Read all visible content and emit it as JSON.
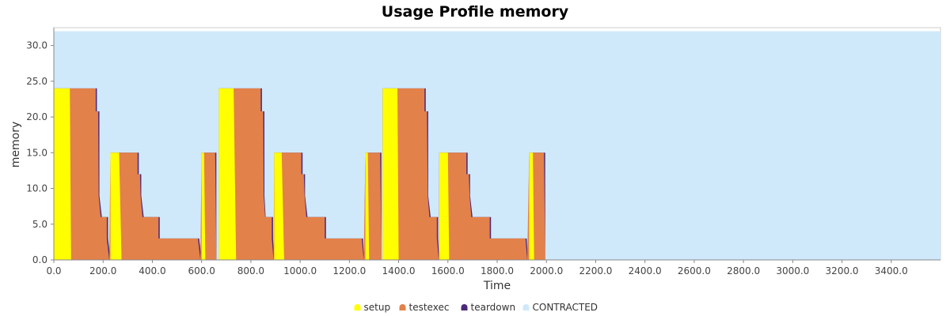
{
  "chart_data": {
    "type": "area",
    "title": "Usage Profile memory",
    "xlabel": "Time",
    "ylabel": "memory",
    "xlim": [
      0,
      3600
    ],
    "ylim": [
      0,
      32.5
    ],
    "x_ticks": [
      0,
      200,
      400,
      600,
      800,
      1000,
      1200,
      1400,
      1600,
      1800,
      2000,
      2200,
      2400,
      2600,
      2800,
      3000,
      3200,
      3400
    ],
    "y_ticks": [
      0,
      5,
      10,
      15,
      20,
      25,
      30
    ],
    "x_tick_labels": [
      "0.0",
      "200.0",
      "400.0",
      "600.0",
      "800.0",
      "1000.0",
      "1200.0",
      "1400.0",
      "1600.0",
      "1800.0",
      "2000.0",
      "2200.0",
      "2400.0",
      "2600.0",
      "2800.0",
      "3000.0",
      "3200.0",
      "3400.0"
    ],
    "y_tick_labels": [
      "0.0",
      "5.0",
      "10.0",
      "15.0",
      "20.0",
      "25.0",
      "30.0"
    ],
    "legend_position": "bottom",
    "series": [
      {
        "name": "CONTRACTED",
        "color": "#cfe9fb",
        "points": [
          [
            0,
            32
          ],
          [
            3600,
            32
          ]
        ]
      },
      {
        "name": "teardown",
        "color": "#4b2a7a",
        "points": [
          [
            0,
            0
          ],
          [
            0,
            24
          ],
          [
            175,
            24
          ],
          [
            175,
            20.8
          ],
          [
            185,
            20.8
          ],
          [
            185,
            9
          ],
          [
            195,
            6
          ],
          [
            220,
            6
          ],
          [
            220,
            3
          ],
          [
            230,
            0
          ],
          [
            230,
            15
          ],
          [
            345,
            15
          ],
          [
            345,
            12
          ],
          [
            355,
            12
          ],
          [
            355,
            9
          ],
          [
            365,
            6
          ],
          [
            430,
            6
          ],
          [
            430,
            3
          ],
          [
            590,
            3
          ],
          [
            600,
            0
          ],
          [
            600,
            15
          ],
          [
            660,
            15
          ],
          [
            660,
            0
          ],
          [
            670,
            0
          ],
          [
            670,
            24
          ],
          [
            845,
            24
          ],
          [
            845,
            20.8
          ],
          [
            855,
            20.8
          ],
          [
            855,
            9
          ],
          [
            860,
            6
          ],
          [
            890,
            6
          ],
          [
            890,
            3
          ],
          [
            895,
            0
          ],
          [
            895,
            15
          ],
          [
            1010,
            15
          ],
          [
            1010,
            12
          ],
          [
            1020,
            12
          ],
          [
            1020,
            9
          ],
          [
            1030,
            6
          ],
          [
            1105,
            6
          ],
          [
            1105,
            3
          ],
          [
            1255,
            3
          ],
          [
            1260,
            0
          ],
          [
            1265,
            15
          ],
          [
            1330,
            15
          ],
          [
            1330,
            0
          ],
          [
            1335,
            0
          ],
          [
            1335,
            24
          ],
          [
            1510,
            24
          ],
          [
            1510,
            20.8
          ],
          [
            1520,
            20.8
          ],
          [
            1520,
            9
          ],
          [
            1530,
            6
          ],
          [
            1560,
            6
          ],
          [
            1560,
            3
          ],
          [
            1565,
            0
          ],
          [
            1565,
            15
          ],
          [
            1680,
            15
          ],
          [
            1680,
            12
          ],
          [
            1690,
            12
          ],
          [
            1690,
            9
          ],
          [
            1700,
            6
          ],
          [
            1775,
            6
          ],
          [
            1775,
            3
          ],
          [
            1920,
            3
          ],
          [
            1925,
            0
          ],
          [
            1930,
            15
          ],
          [
            1995,
            15
          ],
          [
            1995,
            0
          ],
          [
            3600,
            0
          ]
        ]
      },
      {
        "name": "testexec",
        "color": "#e3814a",
        "points": [
          [
            0,
            0
          ],
          [
            0,
            24
          ],
          [
            170,
            24
          ],
          [
            170,
            20.8
          ],
          [
            180,
            20.8
          ],
          [
            182,
            9
          ],
          [
            190,
            6
          ],
          [
            215,
            6
          ],
          [
            215,
            3
          ],
          [
            225,
            0
          ],
          [
            230,
            15
          ],
          [
            340,
            15
          ],
          [
            340,
            12
          ],
          [
            350,
            12
          ],
          [
            352,
            9
          ],
          [
            360,
            6
          ],
          [
            425,
            6
          ],
          [
            425,
            3
          ],
          [
            585,
            3
          ],
          [
            595,
            0
          ],
          [
            600,
            15
          ],
          [
            655,
            15
          ],
          [
            660,
            0
          ],
          [
            670,
            0
          ],
          [
            670,
            24
          ],
          [
            840,
            24
          ],
          [
            840,
            20.8
          ],
          [
            850,
            20.8
          ],
          [
            852,
            9
          ],
          [
            858,
            6
          ],
          [
            885,
            6
          ],
          [
            885,
            3
          ],
          [
            892,
            0
          ],
          [
            895,
            15
          ],
          [
            1005,
            15
          ],
          [
            1005,
            12
          ],
          [
            1015,
            12
          ],
          [
            1018,
            9
          ],
          [
            1025,
            6
          ],
          [
            1100,
            6
          ],
          [
            1100,
            3
          ],
          [
            1250,
            3
          ],
          [
            1258,
            0
          ],
          [
            1265,
            15
          ],
          [
            1325,
            15
          ],
          [
            1330,
            0
          ],
          [
            1335,
            0
          ],
          [
            1335,
            24
          ],
          [
            1505,
            24
          ],
          [
            1505,
            20.8
          ],
          [
            1515,
            20.8
          ],
          [
            1518,
            9
          ],
          [
            1525,
            6
          ],
          [
            1555,
            6
          ],
          [
            1555,
            3
          ],
          [
            1563,
            0
          ],
          [
            1565,
            15
          ],
          [
            1675,
            15
          ],
          [
            1675,
            12
          ],
          [
            1685,
            12
          ],
          [
            1688,
            9
          ],
          [
            1695,
            6
          ],
          [
            1770,
            6
          ],
          [
            1770,
            3
          ],
          [
            1915,
            3
          ],
          [
            1922,
            0
          ],
          [
            1930,
            15
          ],
          [
            1990,
            15
          ],
          [
            1995,
            0
          ],
          [
            3600,
            0
          ]
        ]
      },
      {
        "name": "setup",
        "color": "#ffff00",
        "points": [
          [
            0,
            0
          ],
          [
            0,
            24
          ],
          [
            65,
            24
          ],
          [
            70,
            0
          ],
          [
            230,
            0
          ],
          [
            230,
            15
          ],
          [
            265,
            15
          ],
          [
            275,
            0
          ],
          [
            600,
            0
          ],
          [
            600,
            15
          ],
          [
            610,
            15
          ],
          [
            615,
            0
          ],
          [
            670,
            0
          ],
          [
            670,
            24
          ],
          [
            730,
            24
          ],
          [
            740,
            0
          ],
          [
            895,
            0
          ],
          [
            895,
            15
          ],
          [
            925,
            15
          ],
          [
            935,
            0
          ],
          [
            1265,
            0
          ],
          [
            1265,
            15
          ],
          [
            1275,
            15
          ],
          [
            1280,
            0
          ],
          [
            1335,
            0
          ],
          [
            1335,
            24
          ],
          [
            1395,
            24
          ],
          [
            1400,
            0
          ],
          [
            1565,
            0
          ],
          [
            1565,
            15
          ],
          [
            1600,
            15
          ],
          [
            1605,
            0
          ],
          [
            1930,
            0
          ],
          [
            1930,
            15
          ],
          [
            1945,
            15
          ],
          [
            1950,
            0
          ],
          [
            3600,
            0
          ]
        ]
      }
    ]
  }
}
